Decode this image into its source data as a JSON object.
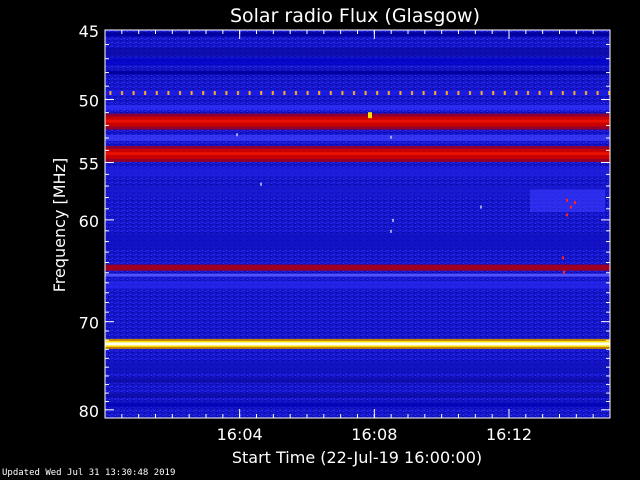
{
  "chart_data": {
    "type": "heatmap",
    "title": "Solar radio Flux (Glasgow)",
    "xlabel": "Start Time (22-Jul-19 16:00:00)",
    "ylabel": "Frequency [MHz]",
    "xlim_minutes": [
      16.0,
      16.25
    ],
    "ylim_mhz": [
      45,
      81
    ],
    "y_log_scale": true,
    "x_ticks": [
      "16:04",
      "16:08",
      "16:12"
    ],
    "x_tick_values": [
      "16:04",
      "16:08",
      "16:12"
    ],
    "y_ticks": [
      45,
      50,
      55,
      60,
      70,
      80
    ],
    "colors": {
      "background": "#000000",
      "low": "#0a0aa8",
      "mid": "#2a2aff",
      "band": "#c80000",
      "hot": "#ffe000",
      "peak": "#fffff0"
    },
    "bands": [
      {
        "freq_mhz": 45.3,
        "level": "low"
      },
      {
        "freq_mhz": 48.0,
        "level": "low"
      },
      {
        "freq_mhz": 49.5,
        "level": "dotted-hot"
      },
      {
        "freq_mhz": 51.7,
        "level": "band"
      },
      {
        "freq_mhz": 54.3,
        "level": "band"
      },
      {
        "freq_mhz": 64.5,
        "level": "band-thin"
      },
      {
        "freq_mhz": 72.4,
        "level": "peak"
      }
    ]
  },
  "footer": {
    "updated": "Updated Wed Jul 31 13:30:48 2019"
  }
}
